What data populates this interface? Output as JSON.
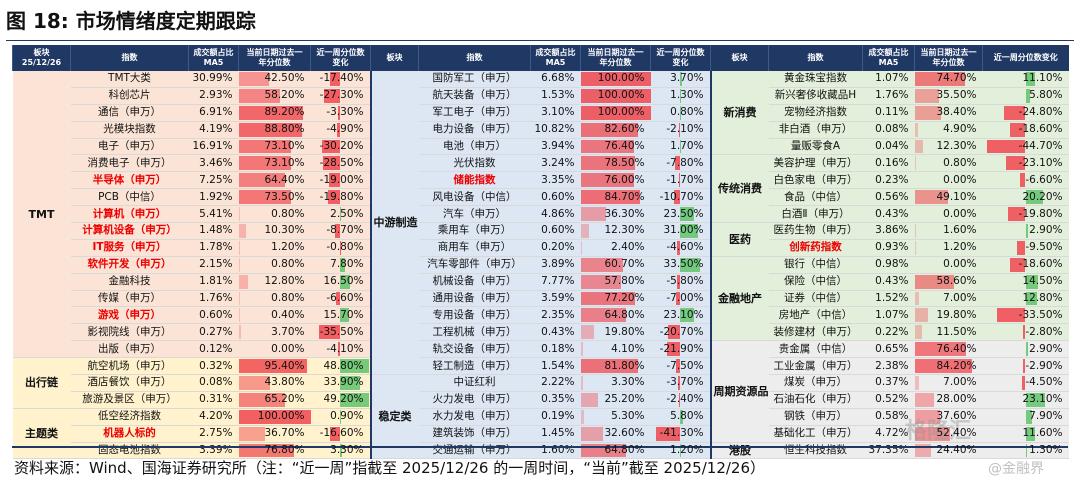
{
  "title": "图 18:  市场情绪度定期跟踪",
  "headers": {
    "block_date": [
      "板块",
      "25/12/26"
    ],
    "index": "指数",
    "turnover": [
      "成交额占比",
      "MA5"
    ],
    "pct": [
      "当前日期过去一",
      "年分位数"
    ],
    "chg": [
      "近一周分位数",
      "变化"
    ],
    "block": "板块",
    "chg_wide": "近一周分位数变化"
  },
  "left": {
    "groups": [
      {
        "name": "TMT",
        "cls": "c-tmt",
        "rows": [
          {
            "n": "TMT大类",
            "r": false,
            "t": "30.99%",
            "p": "42.50%",
            "pv": 42.5,
            "c": "-17.40%",
            "cv": -17.4
          },
          {
            "n": "科创芯片",
            "r": false,
            "t": "2.93%",
            "p": "58.20%",
            "pv": 58.2,
            "c": "-27.30%",
            "cv": -27.3
          },
          {
            "n": "通信（申万）",
            "r": false,
            "t": "6.91%",
            "p": "89.20%",
            "pv": 89.2,
            "c": "-3.30%",
            "cv": -3.3
          },
          {
            "n": "光模块指数",
            "r": false,
            "t": "4.19%",
            "p": "88.80%",
            "pv": 88.8,
            "c": "-4.90%",
            "cv": -4.9
          },
          {
            "n": "电子（申万）",
            "r": false,
            "t": "16.91%",
            "p": "73.10%",
            "pv": 73.1,
            "c": "-30.20%",
            "cv": -30.2
          },
          {
            "n": "消费电子（申万）",
            "r": false,
            "t": "3.46%",
            "p": "73.10%",
            "pv": 73.1,
            "c": "-28.50%",
            "cv": -28.5
          },
          {
            "n": "半导体（申万）",
            "r": true,
            "t": "7.25%",
            "p": "64.40%",
            "pv": 64.4,
            "c": "-19.00%",
            "cv": -19.0
          },
          {
            "n": "PCB（中信）",
            "r": false,
            "t": "1.92%",
            "p": "73.50%",
            "pv": 73.5,
            "c": "-19.80%",
            "cv": -19.8
          },
          {
            "n": "计算机（申万）",
            "r": true,
            "t": "5.41%",
            "p": "0.80%",
            "pv": 0.8,
            "c": "2.50%",
            "cv": 2.5
          },
          {
            "n": "计算机设备（申万）",
            "r": true,
            "t": "1.48%",
            "p": "10.30%",
            "pv": 10.3,
            "c": "-8.70%",
            "cv": -8.7
          },
          {
            "n": "IT服务（申万）",
            "r": true,
            "t": "1.78%",
            "p": "1.20%",
            "pv": 1.2,
            "c": "-0.80%",
            "cv": -0.8
          },
          {
            "n": "软件开发（申万）",
            "r": true,
            "t": "2.15%",
            "p": "0.80%",
            "pv": 0.8,
            "c": "7.80%",
            "cv": 7.8
          },
          {
            "n": "金融科技",
            "r": false,
            "t": "1.81%",
            "p": "12.80%",
            "pv": 12.8,
            "c": "16.50%",
            "cv": 16.5
          },
          {
            "n": "传媒（申万）",
            "r": false,
            "t": "1.76%",
            "p": "0.80%",
            "pv": 0.8,
            "c": "-6.60%",
            "cv": -6.6
          },
          {
            "n": "游戏（申万）",
            "r": true,
            "t": "0.60%",
            "p": "0.40%",
            "pv": 0.4,
            "c": "15.70%",
            "cv": 15.7
          },
          {
            "n": "影视院线（申万）",
            "r": false,
            "t": "0.27%",
            "p": "3.70%",
            "pv": 3.7,
            "c": "-35.50%",
            "cv": -35.5
          },
          {
            "n": "出版（申万）",
            "r": false,
            "t": "0.12%",
            "p": "0.00%",
            "pv": 0.0,
            "c": "-4.10%",
            "cv": -4.1
          }
        ]
      },
      {
        "name": "出行链",
        "cls": "c-chain",
        "rows": [
          {
            "n": "航空机场（申万）",
            "r": false,
            "t": "0.32%",
            "p": "95.40%",
            "pv": 95.4,
            "c": "48.80%",
            "cv": 48.8
          },
          {
            "n": "酒店餐饮（申万）",
            "r": false,
            "t": "0.08%",
            "p": "43.80%",
            "pv": 43.8,
            "c": "33.90%",
            "cv": 33.9
          },
          {
            "n": "旅游及景区（申万）",
            "r": false,
            "t": "0.31%",
            "p": "65.20%",
            "pv": 65.2,
            "c": "49.20%",
            "cv": 49.2
          }
        ]
      },
      {
        "name": "主题类",
        "cls": "c-theme",
        "rows": [
          {
            "n": "低空经济指数",
            "r": false,
            "t": "4.20%",
            "p": "100.00%",
            "pv": 100.0,
            "c": "0.90%",
            "cv": 0.9
          },
          {
            "n": "机器人标的",
            "r": true,
            "t": "2.75%",
            "p": "36.70%",
            "pv": 36.7,
            "c": "-16.60%",
            "cv": -16.6
          },
          {
            "n": "固态电池指数",
            "r": false,
            "t": "3.39%",
            "p": "76.80%",
            "pv": 76.8,
            "c": "3.30%",
            "cv": 3.3
          }
        ]
      }
    ]
  },
  "mid": {
    "groups": [
      {
        "name": "中游制造",
        "cls": "c-mid",
        "rows": [
          {
            "n": "国防军工（申万）",
            "r": false,
            "t": "6.68%",
            "p": "100.00%",
            "pv": 100.0,
            "c": "3.70%",
            "cv": 3.7
          },
          {
            "n": "航天装备（申万）",
            "r": false,
            "t": "1.53%",
            "p": "100.00%",
            "pv": 100.0,
            "c": "1.30%",
            "cv": 1.3
          },
          {
            "n": "军工电子（申万）",
            "r": false,
            "t": "3.10%",
            "p": "100.00%",
            "pv": 100.0,
            "c": "0.80%",
            "cv": 0.8
          },
          {
            "n": "电力设备（申万）",
            "r": false,
            "t": "10.82%",
            "p": "82.60%",
            "pv": 82.6,
            "c": "-2.10%",
            "cv": -2.1
          },
          {
            "n": "电池（申万）",
            "r": false,
            "t": "3.94%",
            "p": "76.40%",
            "pv": 76.4,
            "c": "1.70%",
            "cv": 1.7
          },
          {
            "n": "光伏指数",
            "r": false,
            "t": "3.24%",
            "p": "78.50%",
            "pv": 78.5,
            "c": "-7.80%",
            "cv": -7.8
          },
          {
            "n": "储能指数",
            "r": true,
            "t": "3.35%",
            "p": "76.00%",
            "pv": 76.0,
            "c": "-1.70%",
            "cv": -1.7
          },
          {
            "n": "风电设备（中信）",
            "r": false,
            "t": "0.60%",
            "p": "84.70%",
            "pv": 84.7,
            "c": "-10.70%",
            "cv": -10.7
          },
          {
            "n": "汽车（申万）",
            "r": false,
            "t": "4.86%",
            "p": "36.30%",
            "pv": 36.3,
            "c": "23.50%",
            "cv": 23.5
          },
          {
            "n": "乘用车（申万）",
            "r": false,
            "t": "0.60%",
            "p": "12.30%",
            "pv": 12.3,
            "c": "31.00%",
            "cv": 31.0
          },
          {
            "n": "商用车（申万）",
            "r": false,
            "t": "0.20%",
            "p": "2.40%",
            "pv": 2.4,
            "c": "-4.60%",
            "cv": -4.6
          },
          {
            "n": "汽车零部件（申万）",
            "r": false,
            "t": "3.89%",
            "p": "60.70%",
            "pv": 60.7,
            "c": "33.50%",
            "cv": 33.5
          },
          {
            "n": "机械设备（申万）",
            "r": false,
            "t": "7.77%",
            "p": "57.80%",
            "pv": 57.8,
            "c": "-5.80%",
            "cv": -5.8
          },
          {
            "n": "通用设备（申万）",
            "r": false,
            "t": "3.59%",
            "p": "77.20%",
            "pv": 77.2,
            "c": "-7.00%",
            "cv": -7.0
          },
          {
            "n": "专用设备（申万）",
            "r": false,
            "t": "2.35%",
            "p": "64.80%",
            "pv": 64.8,
            "c": "23.10%",
            "cv": 23.1
          },
          {
            "n": "工程机械（申万）",
            "r": false,
            "t": "0.43%",
            "p": "19.80%",
            "pv": 19.8,
            "c": "-20.70%",
            "cv": -20.7
          },
          {
            "n": "轨交设备（申万）",
            "r": false,
            "t": "0.18%",
            "p": "4.10%",
            "pv": 4.1,
            "c": "-21.90%",
            "cv": -21.9
          },
          {
            "n": "轻工制造（申万）",
            "r": false,
            "t": "1.54%",
            "p": "81.80%",
            "pv": 81.8,
            "c": "-7.50%",
            "cv": -7.5
          }
        ]
      },
      {
        "name": "稳定类",
        "cls": "c-stable",
        "rows": [
          {
            "n": "中证红利",
            "r": false,
            "t": "2.22%",
            "p": "3.30%",
            "pv": 3.3,
            "c": "-3.70%",
            "cv": -3.7
          },
          {
            "n": "火力发电（申万）",
            "r": false,
            "t": "0.35%",
            "p": "25.20%",
            "pv": 25.2,
            "c": "-2.40%",
            "cv": -2.4
          },
          {
            "n": "水力发电（申万）",
            "r": false,
            "t": "0.19%",
            "p": "5.30%",
            "pv": 5.3,
            "c": "5.80%",
            "cv": 5.8
          },
          {
            "n": "建筑装饰（申万）",
            "r": false,
            "t": "1.45%",
            "p": "32.60%",
            "pv": 32.6,
            "c": "-41.30%",
            "cv": -41.3
          },
          {
            "n": "交通运输（申万）",
            "r": false,
            "t": "1.60%",
            "p": "64.80%",
            "pv": 64.8,
            "c": "1.20%",
            "cv": 1.2
          }
        ]
      }
    ]
  },
  "right": {
    "groups": [
      {
        "name": "新消费",
        "cls": "c-cons",
        "rows": [
          {
            "n": "黄金珠宝指数",
            "r": false,
            "t": "1.07%",
            "p": "74.70%",
            "pv": 74.7,
            "c": "11.10%",
            "cv": 11.1
          },
          {
            "n": "新兴奢侈收藏品H",
            "r": false,
            "t": "1.76%",
            "p": "35.50%",
            "pv": 35.5,
            "c": "5.80%",
            "cv": 5.8
          },
          {
            "n": "宠物经济指数",
            "r": false,
            "t": "0.11%",
            "p": "38.40%",
            "pv": 38.4,
            "c": "-24.80%",
            "cv": -24.8
          },
          {
            "n": "非白酒（申万）",
            "r": false,
            "t": "0.08%",
            "p": "4.90%",
            "pv": 4.9,
            "c": "-18.60%",
            "cv": -18.6
          },
          {
            "n": "量贩零食A",
            "r": false,
            "t": "0.04%",
            "p": "12.30%",
            "pv": 12.3,
            "c": "-44.70%",
            "cv": -44.7
          }
        ]
      },
      {
        "name": "传统消费",
        "cls": "c-cons",
        "rows": [
          {
            "n": "美容护理（申万）",
            "r": false,
            "t": "0.16%",
            "p": "0.80%",
            "pv": 0.8,
            "c": "-23.10%",
            "cv": -23.1
          },
          {
            "n": "白色家电（申万）",
            "r": false,
            "t": "0.23%",
            "p": "0.00%",
            "pv": 0.0,
            "c": "-6.60%",
            "cv": -6.6
          },
          {
            "n": "食品（中信）",
            "r": false,
            "t": "0.56%",
            "p": "49.10%",
            "pv": 49.1,
            "c": "20.20%",
            "cv": 20.2
          },
          {
            "n": "白酒Ⅱ（申万）",
            "r": false,
            "t": "0.43%",
            "p": "0.00%",
            "pv": 0.0,
            "c": "-19.80%",
            "cv": -19.8
          }
        ]
      },
      {
        "name": "医药",
        "cls": "c-cons",
        "rows": [
          {
            "n": "医药生物（申万）",
            "r": false,
            "t": "3.86%",
            "p": "1.60%",
            "pv": 1.6,
            "c": "2.90%",
            "cv": 2.9
          },
          {
            "n": "创新药指数",
            "r": true,
            "t": "0.93%",
            "p": "1.20%",
            "pv": 1.2,
            "c": "-9.50%",
            "cv": -9.5
          }
        ]
      },
      {
        "name": "金融地产",
        "cls": "c-fin",
        "rows": [
          {
            "n": "银行（中信）",
            "r": false,
            "t": "0.98%",
            "p": "0.00%",
            "pv": 0.0,
            "c": "-18.60%",
            "cv": -18.6
          },
          {
            "n": "保险（中信）",
            "r": false,
            "t": "0.43%",
            "p": "58.60%",
            "pv": 58.6,
            "c": "14.50%",
            "cv": 14.5
          },
          {
            "n": "证券（中信）",
            "r": false,
            "t": "1.52%",
            "p": "7.00%",
            "pv": 7.0,
            "c": "12.80%",
            "cv": 12.8
          },
          {
            "n": "房地产（中信）",
            "r": false,
            "t": "1.07%",
            "p": "19.80%",
            "pv": 19.8,
            "c": "-33.50%",
            "cv": -33.5
          },
          {
            "n": "装修建材（申万）",
            "r": false,
            "t": "0.22%",
            "p": "11.50%",
            "pv": 11.5,
            "c": "-2.80%",
            "cv": -2.8
          }
        ]
      },
      {
        "name": "周期资源品",
        "cls": "c-cyc",
        "rows": [
          {
            "n": "贵金属（中信）",
            "r": false,
            "t": "0.65%",
            "p": "76.40%",
            "pv": 76.4,
            "c": "2.90%",
            "cv": 2.9
          },
          {
            "n": "工业金属（申万）",
            "r": false,
            "t": "2.38%",
            "p": "84.20%",
            "pv": 84.2,
            "c": "-2.90%",
            "cv": -2.9
          },
          {
            "n": "煤炭（申万）",
            "r": false,
            "t": "0.37%",
            "p": "7.00%",
            "pv": 7.0,
            "c": "-4.50%",
            "cv": -4.5
          },
          {
            "n": "石油石化（申万）",
            "r": false,
            "t": "0.52%",
            "p": "28.00%",
            "pv": 28.0,
            "c": "23.10%",
            "cv": 23.1
          },
          {
            "n": "钢铁（申万）",
            "r": false,
            "t": "0.58%",
            "p": "37.60%",
            "pv": 37.6,
            "c": "7.90%",
            "cv": 7.9
          },
          {
            "n": "基础化工（申万）",
            "r": false,
            "t": "4.72%",
            "p": "52.40%",
            "pv": 52.4,
            "c": "11.60%",
            "cv": 11.6
          }
        ]
      },
      {
        "name": "港股",
        "cls": "c-hk",
        "rows": [
          {
            "n": "恒生科技指数",
            "r": false,
            "t": "37.35%",
            "p": "24.40%",
            "pv": 24.4,
            "c": "1.30%",
            "cv": 1.3
          }
        ]
      }
    ]
  },
  "source": "资料来源：Wind、国海证券研究所（注：“近一周”指截至 2025/12/26 的一周时间，“当前”截至 2025/12/26）",
  "watermark": "格隆汇",
  "watermark2": "@金融界"
}
